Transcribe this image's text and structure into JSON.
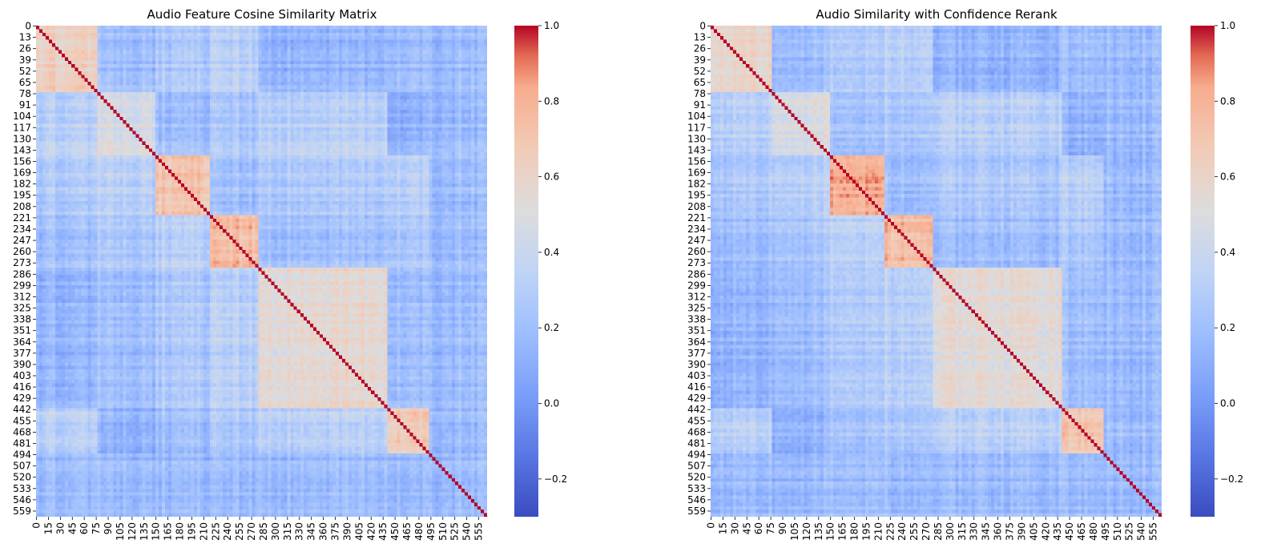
{
  "chart_data": [
    {
      "type": "heatmap",
      "title": "Audio Feature Cosine Similarity Matrix",
      "n": 566,
      "y_ticks": [
        0,
        13,
        26,
        39,
        52,
        65,
        78,
        91,
        104,
        117,
        130,
        143,
        156,
        169,
        182,
        195,
        208,
        221,
        234,
        247,
        260,
        273,
        286,
        299,
        312,
        325,
        338,
        351,
        364,
        377,
        390,
        403,
        416,
        429,
        442,
        455,
        468,
        481,
        494,
        507,
        520,
        533,
        546,
        559
      ],
      "x_ticks": [
        0,
        15,
        30,
        45,
        60,
        75,
        90,
        105,
        120,
        135,
        150,
        165,
        180,
        195,
        210,
        225,
        240,
        255,
        270,
        285,
        300,
        315,
        330,
        345,
        360,
        375,
        390,
        405,
        420,
        435,
        450,
        465,
        480,
        495,
        510,
        525,
        540,
        555
      ],
      "blocks": [
        [
          0,
          76,
          0.62
        ],
        [
          77,
          148,
          0.48
        ],
        [
          149,
          216,
          0.7
        ],
        [
          217,
          278,
          0.75
        ],
        [
          279,
          438,
          0.55
        ],
        [
          439,
          492,
          0.68
        ]
      ],
      "colorbar": {
        "vmin": -0.3,
        "vmax": 1.0,
        "ticks": [
          -0.2,
          0.0,
          0.2,
          0.4,
          0.6,
          0.8,
          1.0
        ],
        "tick_labels": [
          "−0.2",
          "0.0",
          "0.2",
          "0.4",
          "0.6",
          "0.8",
          "1.0"
        ]
      },
      "colormap": "coolwarm"
    },
    {
      "type": "heatmap",
      "title": "Audio Similarity with Confidence Rerank",
      "n": 566,
      "y_ticks": [
        0,
        13,
        26,
        39,
        52,
        65,
        78,
        91,
        104,
        117,
        130,
        143,
        156,
        169,
        182,
        195,
        208,
        221,
        234,
        247,
        260,
        273,
        286,
        299,
        312,
        325,
        338,
        351,
        364,
        377,
        390,
        403,
        416,
        429,
        442,
        455,
        468,
        481,
        494,
        507,
        520,
        533,
        546,
        559
      ],
      "x_ticks": [
        0,
        15,
        30,
        45,
        60,
        75,
        90,
        105,
        120,
        135,
        150,
        165,
        180,
        195,
        210,
        225,
        240,
        255,
        270,
        285,
        300,
        315,
        330,
        345,
        360,
        375,
        390,
        405,
        420,
        435,
        450,
        465,
        480,
        495,
        510,
        525,
        540,
        555
      ],
      "blocks": [
        [
          0,
          76,
          0.6
        ],
        [
          77,
          148,
          0.5
        ],
        [
          149,
          216,
          0.8
        ],
        [
          217,
          278,
          0.76
        ],
        [
          279,
          438,
          0.54
        ],
        [
          439,
          492,
          0.7
        ]
      ],
      "colorbar": {
        "vmin": -0.3,
        "vmax": 1.0,
        "ticks": [
          -0.2,
          0.0,
          0.2,
          0.4,
          0.6,
          0.8,
          1.0
        ],
        "tick_labels": [
          "−0.2",
          "0.0",
          "0.2",
          "0.4",
          "0.6",
          "0.8",
          "1.0"
        ]
      },
      "colormap": "coolwarm"
    }
  ]
}
